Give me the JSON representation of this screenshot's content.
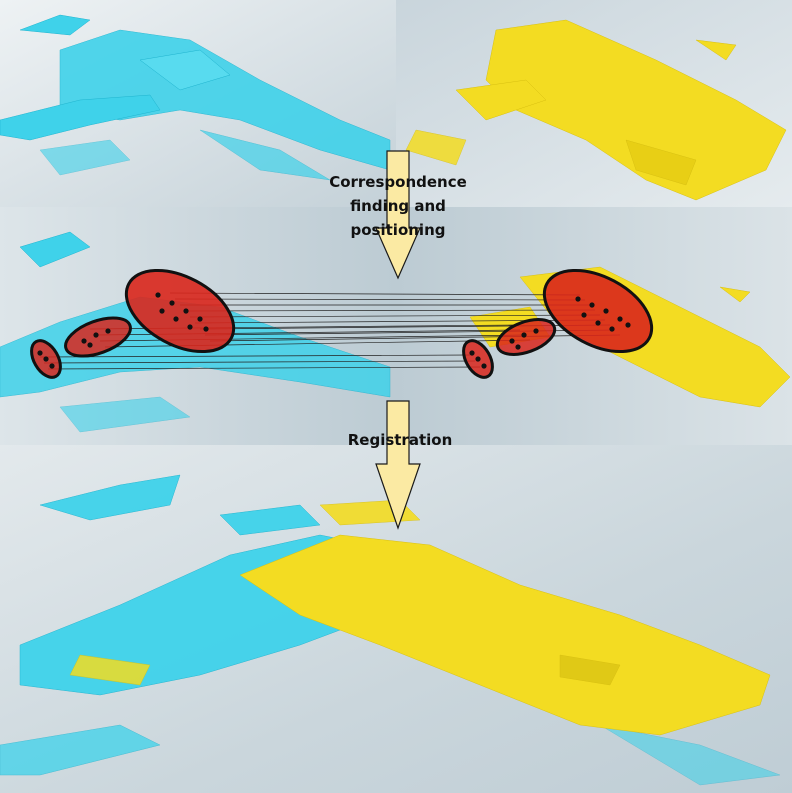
{
  "labels": {
    "correspondence": [
      "Correspondence",
      "finding and",
      "positioning"
    ],
    "registration": "Registration"
  },
  "colors": {
    "cyan_cloud": "#3fd2ea",
    "yellow_cloud": "#f3dc22",
    "correspondence_region": "#d9261c",
    "ellipse_outline": "#111111",
    "arrow_fill": "#fbeaa3",
    "background": "#d9e2e7"
  },
  "icons": {
    "step_arrow": "down-arrow-icon"
  }
}
